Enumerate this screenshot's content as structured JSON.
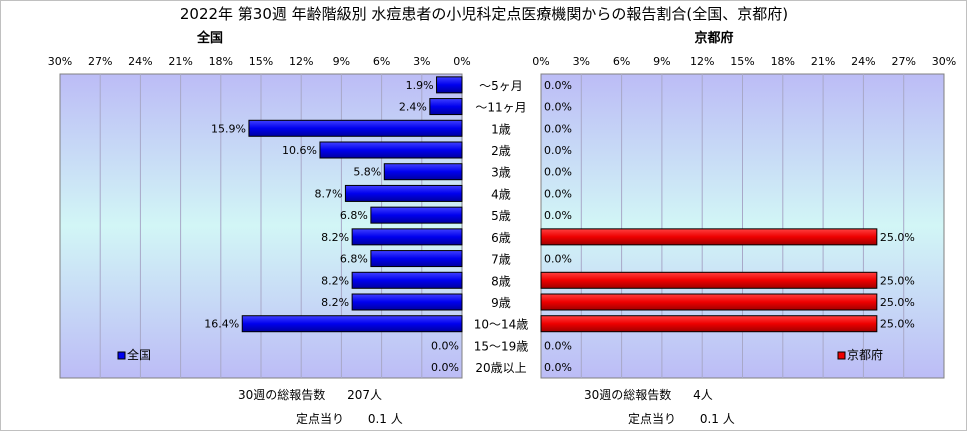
{
  "chart_data": {
    "type": "bar",
    "title": "2022年 第30週 年齢階級別 水痘患者の小児科定点医療機関からの報告割合(全国、京都府)",
    "categories": [
      "～5ヶ月",
      "～11ヶ月",
      "1歳",
      "2歳",
      "3歳",
      "4歳",
      "5歳",
      "6歳",
      "7歳",
      "8歳",
      "9歳",
      "10～14歳",
      "15～19歳",
      "20歳以上"
    ],
    "axis_ticks": [
      "0%",
      "3%",
      "6%",
      "9%",
      "12%",
      "15%",
      "18%",
      "21%",
      "24%",
      "27%",
      "30%"
    ],
    "xlim": [
      0,
      30
    ],
    "grid": true,
    "legend_placement": "bottom-left of each panel",
    "series": [
      {
        "name": "全国",
        "panel_title": "全国",
        "color": "#0000ee",
        "values": [
          1.9,
          2.4,
          15.9,
          10.6,
          5.8,
          8.7,
          6.8,
          8.2,
          6.8,
          8.2,
          8.2,
          16.4,
          0.0,
          0.0
        ],
        "labels": [
          "1.9%",
          "2.4%",
          "15.9%",
          "10.6%",
          "5.8%",
          "8.7%",
          "6.8%",
          "8.2%",
          "6.8%",
          "8.2%",
          "8.2%",
          "16.4%",
          "0.0%",
          "0.0%"
        ]
      },
      {
        "name": "京都府",
        "panel_title": "京都府",
        "color": "#ee0000",
        "values": [
          0.0,
          0.0,
          0.0,
          0.0,
          0.0,
          0.0,
          0.0,
          25.0,
          0.0,
          25.0,
          25.0,
          25.0,
          0.0,
          0.0
        ],
        "labels": [
          "0.0%",
          "0.0%",
          "0.0%",
          "0.0%",
          "0.0%",
          "0.0%",
          "0.0%",
          "25.0%",
          "0.0%",
          "25.0%",
          "25.0%",
          "25.0%",
          "0.0%",
          "0.0%"
        ]
      }
    ]
  },
  "footer": {
    "national": {
      "total_label": "30週の総報告数",
      "total_value": "207人",
      "per_label": "定点当り",
      "per_value": "0.1 人"
    },
    "kyoto": {
      "total_label": "30週の総報告数",
      "total_value": "4人",
      "per_label": "定点当り",
      "per_value": "0.1 人"
    }
  }
}
